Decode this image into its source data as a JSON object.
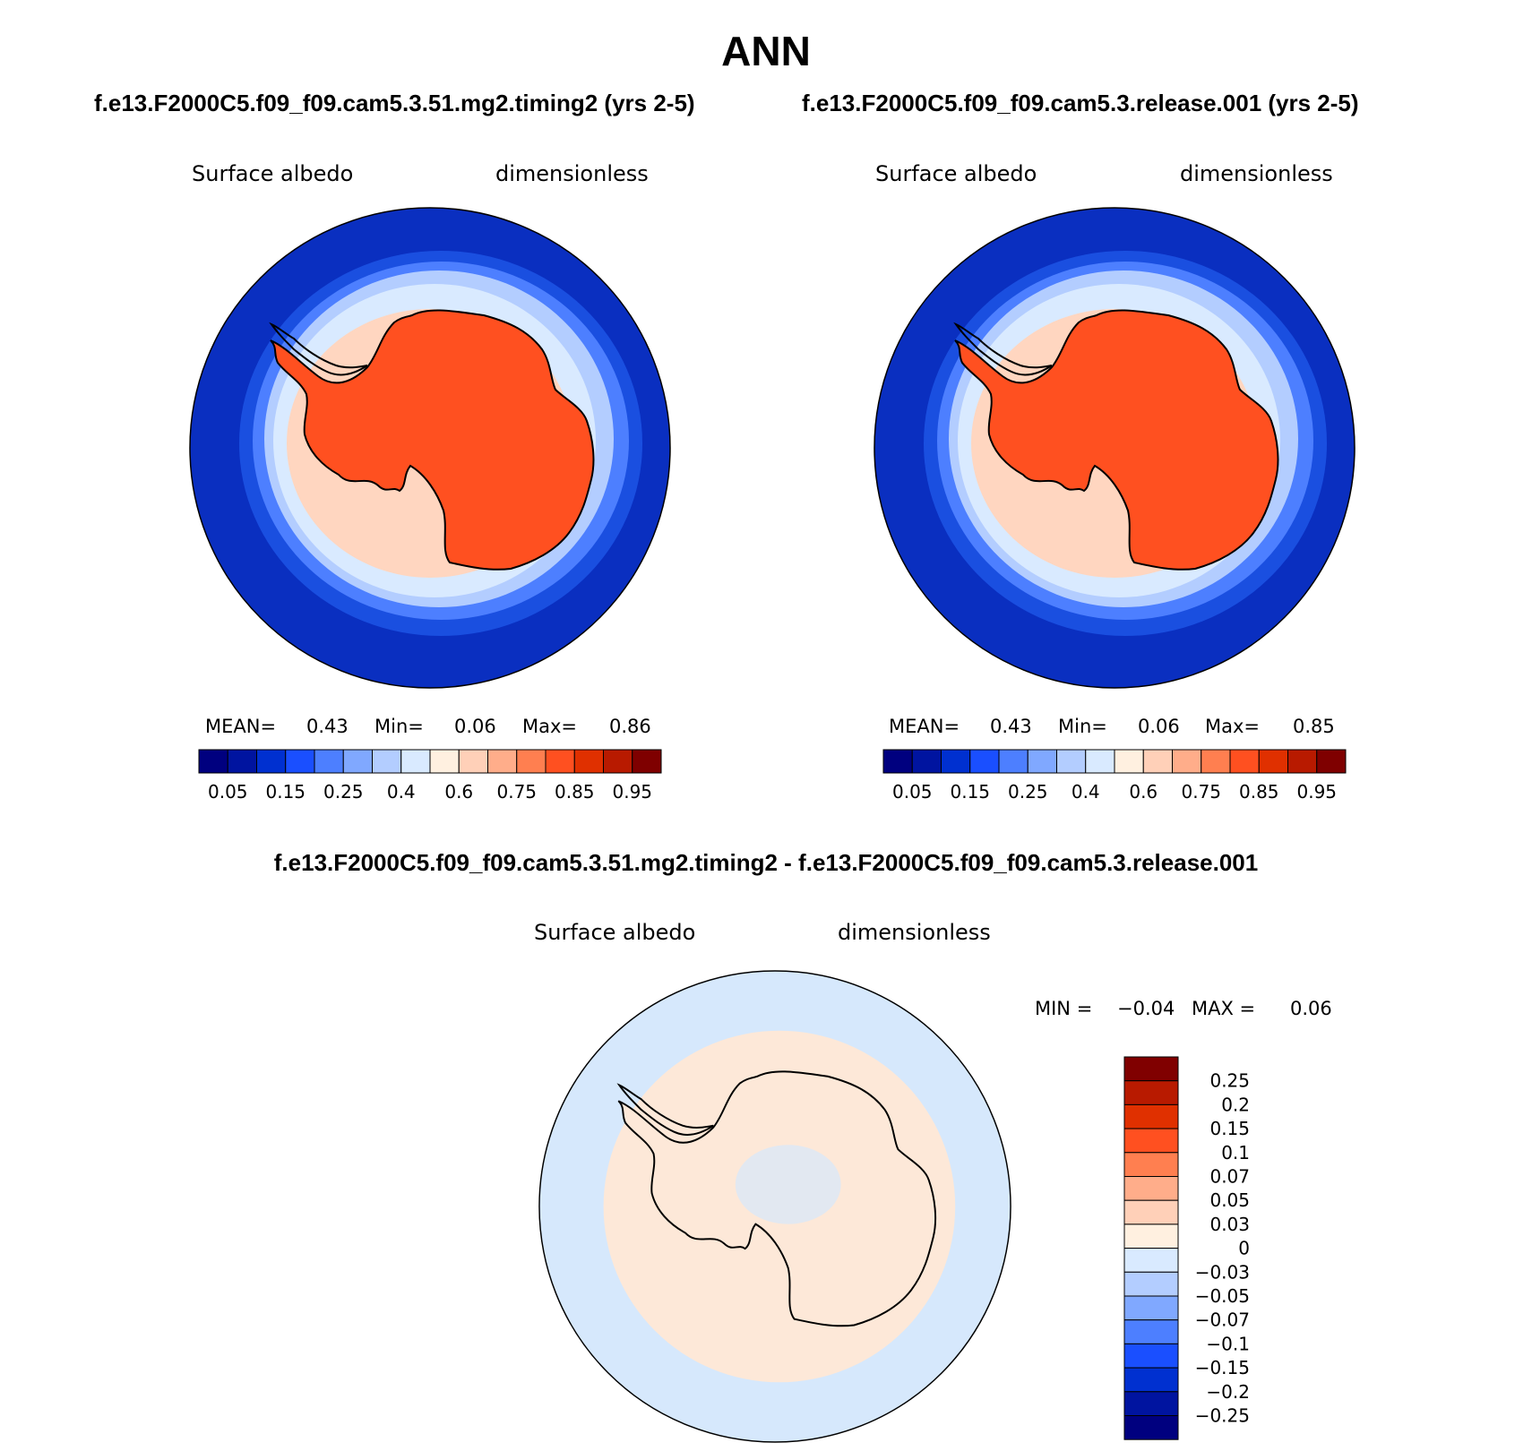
{
  "title": "ANN",
  "left_panel": {
    "case_title": "f.e13.F2000C5.f09_f09.cam5.3.51.mg2.timing2 (yrs 2-5)",
    "variable": "Surface albedo",
    "units": "dimensionless",
    "stats": {
      "mean_label": "MEAN=",
      "mean": "0.43",
      "min_label": "Min=",
      "min": "0.06",
      "max_label": "Max=",
      "max": "0.86"
    }
  },
  "right_panel": {
    "case_title": "f.e13.F2000C5.f09_f09.cam5.3.release.001 (yrs 2-5)",
    "variable": "Surface albedo",
    "units": "dimensionless",
    "stats": {
      "mean_label": "MEAN=",
      "mean": "0.43",
      "min_label": "Min=",
      "min": "0.06",
      "max_label": "Max=",
      "max": "0.85"
    }
  },
  "diff_panel": {
    "title": "f.e13.F2000C5.f09_f09.cam5.3.51.mg2.timing2 - f.e13.F2000C5.f09_f09.cam5.3.release.001",
    "variable": "Surface albedo",
    "units": "dimensionless",
    "min_label": "MIN =",
    "min": "−0.04",
    "max_label": "MAX =",
    "max": "0.06"
  },
  "colorbar_abs": {
    "labels": [
      "0.05",
      "0.15",
      "0.25",
      "0.4",
      "0.6",
      "0.75",
      "0.85",
      "0.95"
    ],
    "colors": [
      "#00007f",
      "#0014a0",
      "#0030d0",
      "#1a4fff",
      "#4d7fff",
      "#80a8ff",
      "#b3cdff",
      "#d9eaff",
      "#fff0e0",
      "#ffd0b8",
      "#ffad8a",
      "#ff7f50",
      "#ff5020",
      "#e03000",
      "#b81a00",
      "#7f0000"
    ]
  },
  "colorbar_diff": {
    "labels": [
      "0.25",
      "0.2",
      "0.15",
      "0.1",
      "0.07",
      "0.05",
      "0.03",
      "0",
      "−0.03",
      "−0.05",
      "−0.07",
      "−0.1",
      "−0.15",
      "−0.2",
      "−0.25"
    ],
    "colors": [
      "#800000",
      "#b81a00",
      "#e03000",
      "#ff5020",
      "#ff7f50",
      "#ffad8a",
      "#ffd0b8",
      "#fff0e0",
      "#d9eaff",
      "#b3cdff",
      "#80a8ff",
      "#4d7fff",
      "#1a4fff",
      "#0030d0",
      "#0014a0",
      "#00007f"
    ]
  },
  "map_colors": {
    "ocean_outer": "#0a2fc0",
    "ring1": "#1a4fe0",
    "ring2": "#4d7fff",
    "ring3": "#b3cdff",
    "ring4": "#d9eaff",
    "shelf": "#ffd6c0",
    "continent": "#ff5020",
    "diff_ocean": "#d6e8fc",
    "diff_land": "#fde8d8"
  }
}
